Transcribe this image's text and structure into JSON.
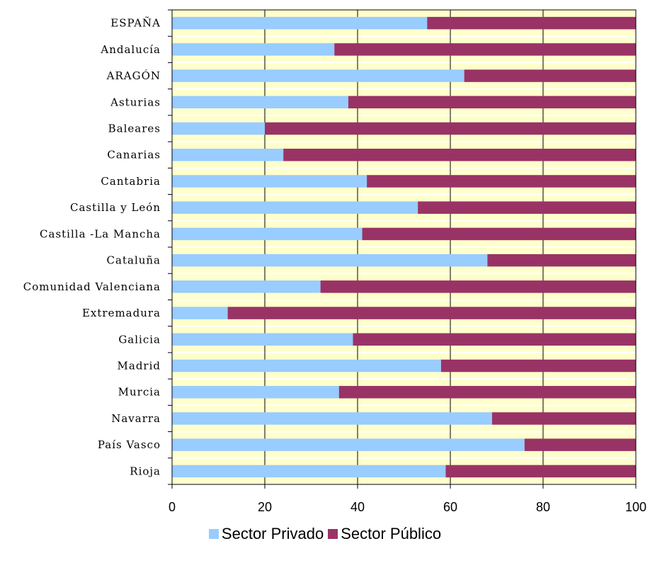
{
  "chart_data": {
    "type": "bar",
    "orientation": "horizontal",
    "stacked": true,
    "categories": [
      "ESPAÑA",
      "Andalucía",
      "ARAGÓN",
      "Asturias",
      "Baleares",
      "Canarias",
      "Cantabria",
      "Castilla y León",
      "Castilla -La Mancha",
      "Cataluña",
      "Comunidad Valenciana",
      "Extremadura",
      "Galicia",
      "Madrid",
      "Murcia",
      "Navarra",
      "País Vasco",
      "Rioja"
    ],
    "series": [
      {
        "name": "Sector Privado",
        "color": "#99ccff",
        "values": [
          55,
          35,
          63,
          38,
          20,
          24,
          42,
          53,
          41,
          68,
          32,
          12,
          39,
          58,
          36,
          69,
          76,
          59
        ]
      },
      {
        "name": "Sector Público",
        "color": "#993366",
        "values": [
          45,
          65,
          37,
          62,
          80,
          76,
          58,
          47,
          59,
          32,
          68,
          88,
          61,
          42,
          64,
          31,
          24,
          41
        ]
      }
    ],
    "xlim": [
      0,
      100
    ],
    "xticks": [
      0,
      20,
      40,
      60,
      80,
      100
    ],
    "grid": true,
    "legend_position": "bottom",
    "plot_background": "#ffffcc",
    "band_color": "#ffffff"
  }
}
